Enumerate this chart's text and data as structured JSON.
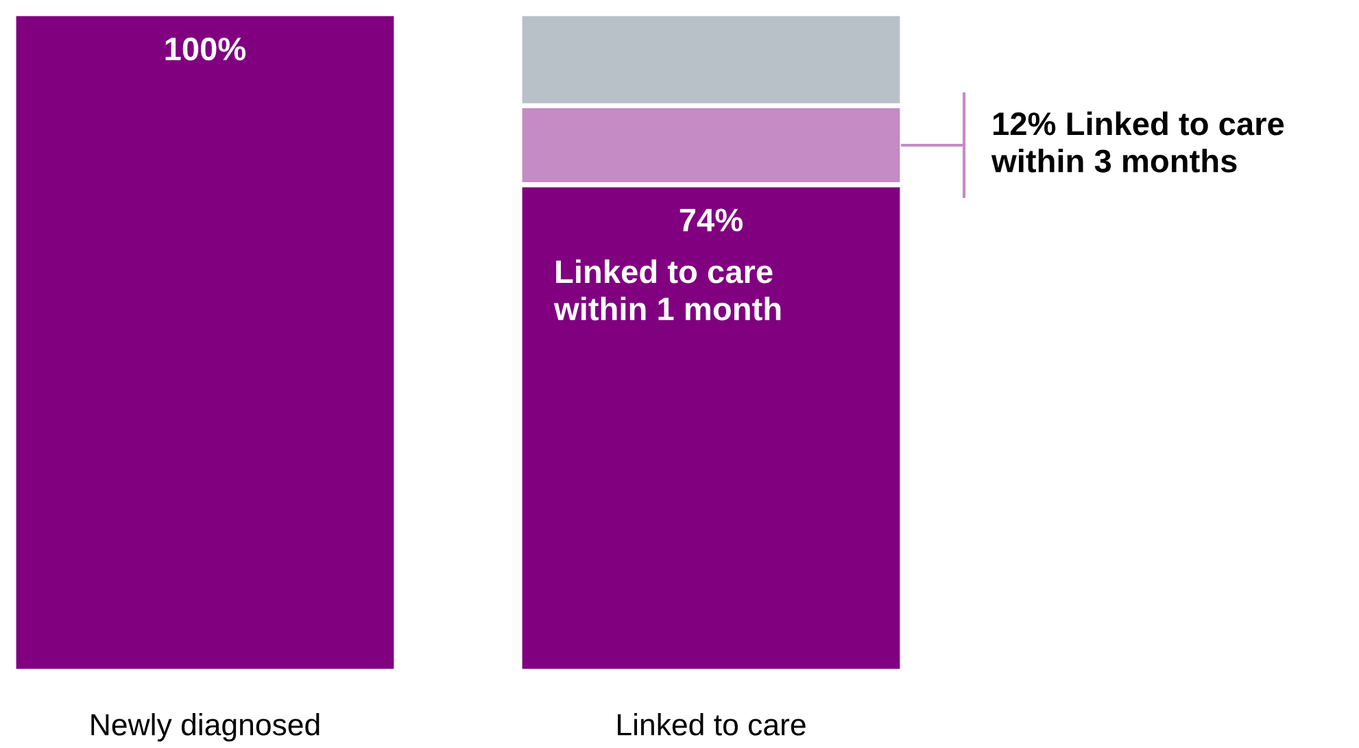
{
  "chart_data": {
    "type": "bar",
    "stacked": true,
    "categories": [
      "Newly diagnosed",
      "Linked to care"
    ],
    "series": [
      {
        "color": "#800080",
        "values": [
          100,
          74
        ],
        "value_labels": [
          "100%",
          "74%"
        ]
      },
      {
        "color": "#c48bc4",
        "values": [
          null,
          12
        ],
        "value_labels": [
          null,
          "12% Linked to care\nwithin 3 months"
        ]
      },
      {
        "color": "#b8c0c8",
        "values": [
          null,
          14
        ]
      }
    ],
    "annotations": [
      "Linked to care\nwithin 1 month"
    ],
    "legend": false,
    "grid": false
  }
}
